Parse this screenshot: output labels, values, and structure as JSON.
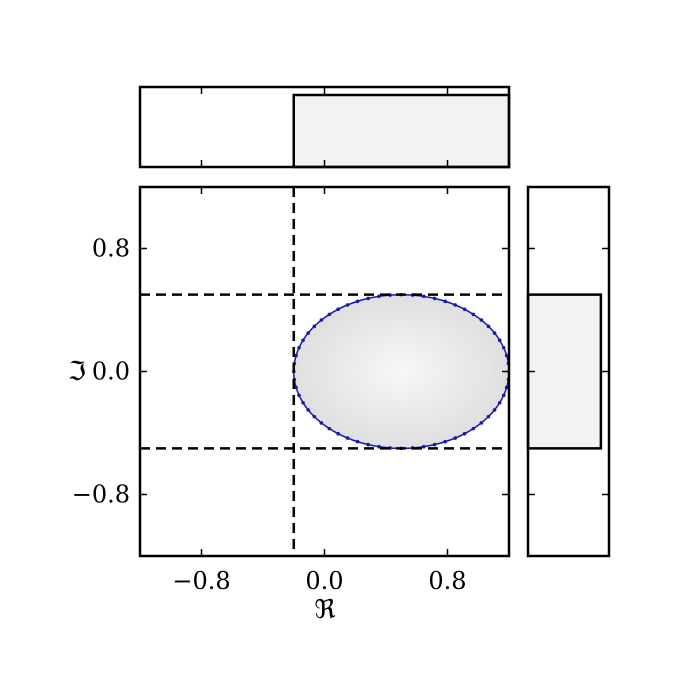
{
  "chart_data": [
    {
      "panel": "main",
      "type": "scatter",
      "title": "",
      "xlabel": "ℜ",
      "ylabel": "ℑ",
      "xlim": [
        -1.2,
        1.2
      ],
      "ylim": [
        -1.2,
        1.2
      ],
      "x_ticks": [
        -0.8,
        0.0,
        0.8
      ],
      "y_ticks": [
        -0.8,
        0.0,
        0.8
      ],
      "x_tick_labels": [
        "−0.8",
        "0.0",
        "0.8"
      ],
      "y_tick_labels": [
        "−0.8",
        "0.0",
        "0.8"
      ],
      "grid": false,
      "ellipse": {
        "center_x": 0.5,
        "center_y": 0.0,
        "radius_x": 0.7,
        "radius_y": 0.5,
        "point_count": 60
      },
      "dashed_lines": {
        "vertical_x": -0.2,
        "horizontal_y": [
          0.5,
          -0.5
        ]
      },
      "ellipse_fill": "#eeeeee",
      "ellipse_edge": "#1a1aa6"
    },
    {
      "panel": "top-marginal",
      "type": "bar",
      "description": "distribution of real part",
      "x_range": [
        -0.2,
        1.2
      ],
      "height_fraction": 0.9,
      "xlim": [
        -1.2,
        1.2
      ],
      "fill": "#f2f2f2"
    },
    {
      "panel": "right-marginal",
      "type": "bar",
      "description": "distribution of imaginary part",
      "y_range": [
        -0.5,
        0.5
      ],
      "width_fraction": 0.9,
      "ylim": [
        -1.2,
        1.2
      ],
      "fill": "#f2f2f2"
    }
  ]
}
